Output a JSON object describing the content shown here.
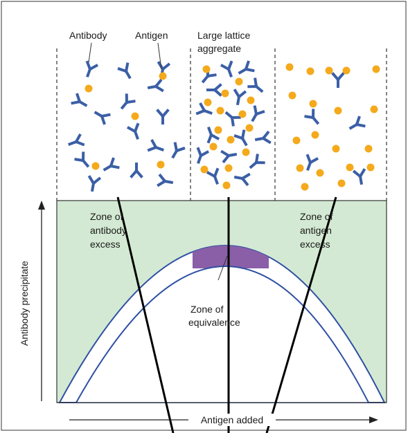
{
  "top_labels": {
    "antibody": "Antibody",
    "antigen": "Antigen",
    "lattice": [
      "Large lattice",
      "aggregate"
    ]
  },
  "zones": {
    "antibody_excess": [
      "Zone of",
      "antibody",
      "excess"
    ],
    "antigen_excess": [
      "Zone of",
      "antigen",
      "excess"
    ],
    "equivalence": [
      "Zone of",
      "equivalence"
    ]
  },
  "axes": {
    "y_label": "Antibody precipitate",
    "x_label": "Antigen added"
  }
}
